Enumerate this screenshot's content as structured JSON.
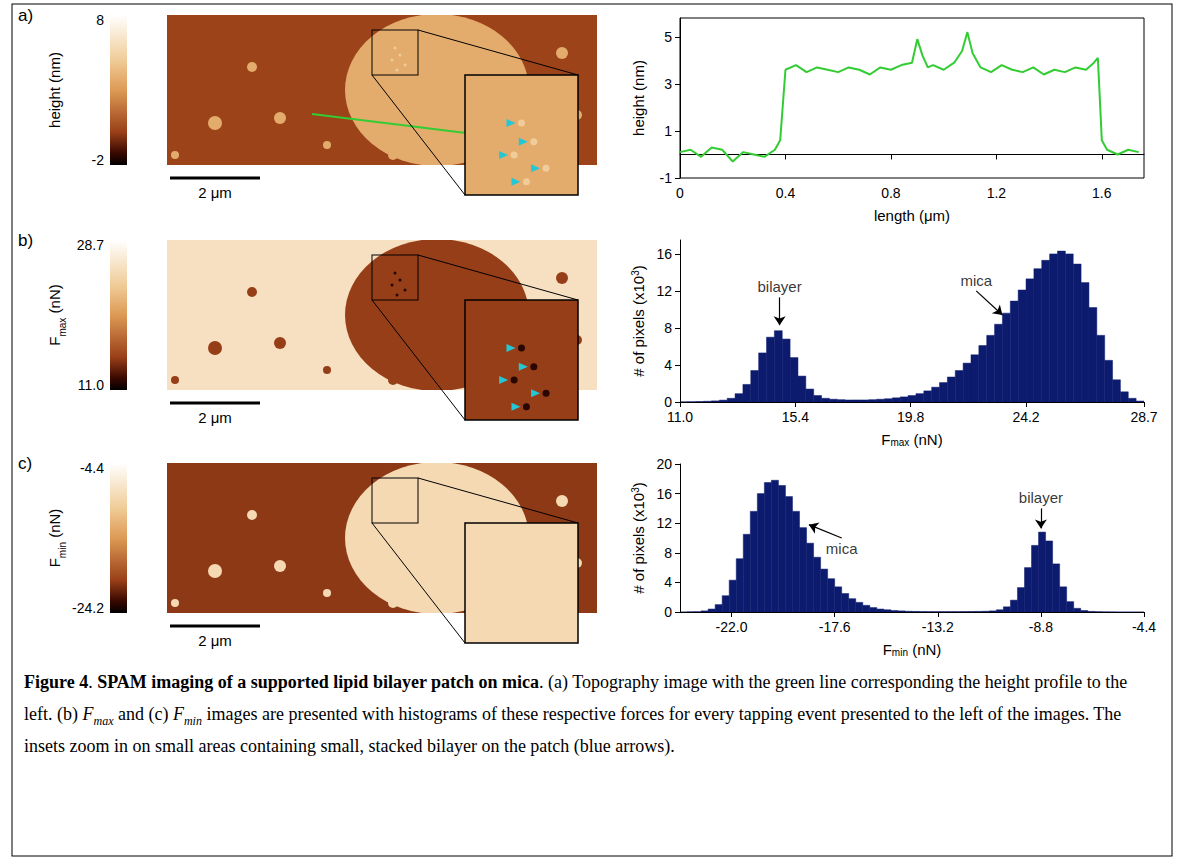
{
  "panel_labels": [
    "a)",
    "b)",
    "c)"
  ],
  "images": [
    {
      "colorbar_title": [
        {
          "t": "height (nm)"
        }
      ],
      "colorbar_range": [
        -2,
        8
      ],
      "colorbar_ticks": [
        -2,
        8
      ],
      "scale_bar": "2 μm",
      "mica": 0.3,
      "bilayer": 3.7,
      "stacked": 5.0
    },
    {
      "colorbar_title": [
        {
          "t": "F"
        },
        {
          "t": "max",
          "sub": true
        },
        {
          "t": " (nN)"
        }
      ],
      "colorbar_range": [
        11,
        28.7
      ],
      "colorbar_ticks": [
        {
          "value": 11,
          "label": "11.0"
        },
        28.7
      ],
      "scale_bar": "2 μm",
      "mica": 25.5,
      "bilayer": 14.8,
      "stacked": 12.0
    },
    {
      "colorbar_title": [
        {
          "t": "F"
        },
        {
          "t": "min",
          "sub": true
        },
        {
          "t": " (nN)"
        }
      ],
      "colorbar_range": [
        -24.2,
        -4.4
      ],
      "colorbar_ticks": [
        -24.2,
        -4.4
      ],
      "scale_bar": "2 μm",
      "mica": -20.2,
      "bilayer": -8.8
    }
  ],
  "chart_data": [
    {
      "type": "line",
      "xlabel": [
        {
          "t": "length (μm)"
        }
      ],
      "ylabel": [
        {
          "t": "height (nm)"
        }
      ],
      "color": "#33cc33",
      "x": [
        0,
        0.04,
        0.08,
        0.12,
        0.16,
        0.2,
        0.24,
        0.28,
        0.32,
        0.36,
        0.38,
        0.4,
        0.44,
        0.48,
        0.52,
        0.56,
        0.6,
        0.64,
        0.68,
        0.72,
        0.76,
        0.8,
        0.84,
        0.88,
        0.9,
        0.92,
        0.94,
        0.96,
        1.0,
        1.04,
        1.07,
        1.09,
        1.11,
        1.14,
        1.18,
        1.22,
        1.26,
        1.3,
        1.34,
        1.38,
        1.42,
        1.46,
        1.5,
        1.54,
        1.57,
        1.585,
        1.6,
        1.62,
        1.66,
        1.7,
        1.74
      ],
      "values": [
        0.1,
        0.2,
        -0.1,
        0.3,
        0.2,
        -0.3,
        0.1,
        0,
        -0.1,
        0.2,
        0.6,
        3.6,
        3.8,
        3.5,
        3.7,
        3.6,
        3.5,
        3.7,
        3.6,
        3.4,
        3.7,
        3.6,
        3.8,
        3.9,
        4.9,
        4.2,
        3.7,
        3.8,
        3.6,
        3.9,
        4.4,
        5.2,
        4.3,
        3.7,
        3.5,
        3.8,
        3.6,
        3.5,
        3.7,
        3.4,
        3.6,
        3.5,
        3.7,
        3.6,
        3.9,
        4.1,
        0.6,
        0.2,
        0,
        0.2,
        0.1
      ],
      "xlim": [
        0,
        1.76
      ],
      "xticks": [
        0,
        0.4,
        0.8,
        1.2,
        1.6
      ],
      "ylim": [
        -1,
        5.8
      ],
      "yticks": [
        -1,
        1,
        3,
        5
      ]
    },
    {
      "type": "histogram",
      "xlabel": [
        {
          "t": "F"
        },
        {
          "t": "max",
          "sub": true
        },
        {
          "t": " (nN)"
        }
      ],
      "ylabel": [
        {
          "t": "# of pixels (x10"
        },
        {
          "t": "3",
          "sup": true
        },
        {
          "t": ")"
        }
      ],
      "color": "#0d1b6e",
      "bins": [
        11.0,
        11.3,
        11.6,
        11.9,
        12.2,
        12.5,
        12.8,
        13.1,
        13.4,
        13.7,
        14.0,
        14.3,
        14.6,
        14.9,
        15.2,
        15.5,
        15.8,
        16.1,
        16.4,
        16.7,
        17.0,
        17.3,
        17.6,
        17.9,
        18.2,
        18.5,
        18.8,
        19.1,
        19.4,
        19.7,
        20.0,
        20.3,
        20.6,
        20.9,
        21.2,
        21.5,
        21.8,
        22.1,
        22.4,
        22.7,
        23.0,
        23.3,
        23.6,
        23.9,
        24.2,
        24.5,
        24.8,
        25.1,
        25.4,
        25.7,
        26.0,
        26.3,
        26.6,
        26.9,
        27.2,
        27.5,
        27.8,
        28.1,
        28.4,
        28.7
      ],
      "counts": [
        0.02,
        0.03,
        0.05,
        0.08,
        0.12,
        0.2,
        0.4,
        0.9,
        1.9,
        3.4,
        5.3,
        7.0,
        7.7,
        6.8,
        4.8,
        2.8,
        1.4,
        0.7,
        0.4,
        0.3,
        0.25,
        0.22,
        0.22,
        0.22,
        0.25,
        0.3,
        0.35,
        0.45,
        0.55,
        0.7,
        0.9,
        1.2,
        1.6,
        2.1,
        2.7,
        3.4,
        4.2,
        5.1,
        6.1,
        7.2,
        8.4,
        9.6,
        10.9,
        12.1,
        13.3,
        14.4,
        15.3,
        16.0,
        16.3,
        16.0,
        14.9,
        12.9,
        10.2,
        7.2,
        4.5,
        2.4,
        1.1,
        0.4,
        0.1
      ],
      "xlim": [
        11,
        28.7
      ],
      "xticks": [
        {
          "value": 11,
          "label": "11.0"
        },
        15.4,
        19.8,
        24.2,
        28.7
      ],
      "ylim": [
        0,
        17.5
      ],
      "yticks": [
        0,
        4,
        8,
        12,
        16
      ],
      "annotations": [
        {
          "text": "bilayer",
          "x": 14.8,
          "y": 11.3,
          "arrow_to": [
            14.8,
            8.3
          ]
        },
        {
          "text": "mica",
          "x": 22.3,
          "y": 12,
          "arrow_to": [
            23.3,
            9.4
          ]
        }
      ]
    },
    {
      "type": "histogram",
      "xlabel": [
        {
          "t": "F"
        },
        {
          "t": "min",
          "sub": true
        },
        {
          "t": " (nN)"
        }
      ],
      "ylabel": [
        {
          "t": "# of pixels (x10"
        },
        {
          "t": "3",
          "sup": true
        },
        {
          "t": ")"
        }
      ],
      "color": "#0d1b6e",
      "bins": [
        -24.2,
        -23.9,
        -23.6,
        -23.3,
        -23.0,
        -22.7,
        -22.4,
        -22.1,
        -21.8,
        -21.5,
        -21.2,
        -20.9,
        -20.6,
        -20.3,
        -20.0,
        -19.7,
        -19.4,
        -19.1,
        -18.8,
        -18.5,
        -18.2,
        -17.9,
        -17.6,
        -17.3,
        -17.0,
        -16.7,
        -16.4,
        -16.1,
        -15.8,
        -15.5,
        -15.2,
        -14.9,
        -14.6,
        -14.3,
        -14.0,
        -13.7,
        -13.4,
        -13.1,
        -12.8,
        -12.5,
        -12.2,
        -11.9,
        -11.6,
        -11.3,
        -11.0,
        -10.7,
        -10.4,
        -10.1,
        -9.8,
        -9.5,
        -9.2,
        -8.9,
        -8.6,
        -8.3,
        -8.0,
        -7.7,
        -7.4,
        -7.1,
        -6.8,
        -6.5,
        -6.2,
        -5.9,
        -5.6,
        -5.3,
        -5.0,
        -4.7,
        -4.4
      ],
      "counts": [
        0,
        0.02,
        0.05,
        0.15,
        0.4,
        1.0,
        2.2,
        4.3,
        7.2,
        10.5,
        13.6,
        16.0,
        17.5,
        17.8,
        17.1,
        15.6,
        13.6,
        11.4,
        9.3,
        7.4,
        5.8,
        4.5,
        3.4,
        2.5,
        1.8,
        1.3,
        0.9,
        0.6,
        0.4,
        0.3,
        0.2,
        0.15,
        0.1,
        0.08,
        0.06,
        0.05,
        0.05,
        0.05,
        0.05,
        0.05,
        0.06,
        0.07,
        0.08,
        0.1,
        0.15,
        0.3,
        0.7,
        1.6,
        3.3,
        6.0,
        9.0,
        10.8,
        9.6,
        6.5,
        3.4,
        1.4,
        0.5,
        0.2,
        0.08,
        0.04,
        0.02,
        0.01,
        0,
        0,
        0,
        0
      ],
      "xlim": [
        -24.2,
        -4.4
      ],
      "xticks": [
        {
          "value": -22,
          "label": "-22.0"
        },
        -17.6,
        -13.2,
        -8.8,
        -4.4
      ],
      "ylim": [
        0,
        20
      ],
      "yticks": [
        0,
        4,
        8,
        12,
        16,
        20
      ],
      "annotations": [
        {
          "text": "mica",
          "x": -17.3,
          "y": 10,
          "arrow_to": [
            -18.7,
            11.8
          ]
        },
        {
          "text": "bilayer",
          "x": -8.8,
          "y": 14,
          "arrow_to": [
            -8.8,
            11.3
          ]
        }
      ]
    }
  ],
  "caption": [
    {
      "t": "Figure 4",
      "bold": true
    },
    {
      "t": ". "
    },
    {
      "t": "SPAM imaging of a supported lipid bilayer patch on mica",
      "bold": true
    },
    {
      "t": ". (a) Topography image with the green line corresponding the height profile to the left. (b) "
    },
    {
      "t": "F",
      "italic": true
    },
    {
      "t": "max",
      "italic": true,
      "sub": true
    },
    {
      "t": " and (c) "
    },
    {
      "t": "F",
      "italic": true
    },
    {
      "t": "min",
      "italic": true,
      "sub": true
    },
    {
      "t": " images are presented with histograms of these respective forces for every tapping event presented to the left of the images. The insets zoom in on small areas containing small, stacked bilayer on the patch (blue arrows)."
    }
  ]
}
